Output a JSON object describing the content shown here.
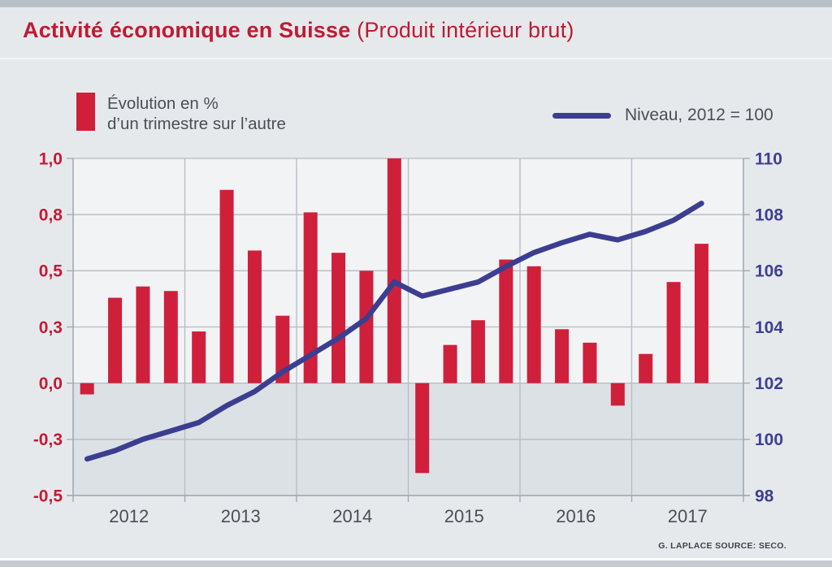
{
  "page": {
    "title_bold": "Activité économique en Suisse",
    "title_regular": " (Produit intérieur brut)",
    "footer_credit": "G. LAPLACE SOURCE: SECO."
  },
  "legend": {
    "bars_label_line1": "Évolution en %",
    "bars_label_line2": "d’un trimestre sur l’autre",
    "line_label": "Niveau, 2012 = 100"
  },
  "colors": {
    "title_red": "#c01a31",
    "bar_red": "#d01f3b",
    "line_blue": "#3b3e90",
    "left_axis_red": "#c41a35",
    "right_axis_blue": "#3d4094",
    "grid": "#b5bcc3",
    "border": "#9fa6ad",
    "text_gray": "#4a4f54",
    "plot_bg_above_zero": "#f1f3f5",
    "plot_bg_below_zero": "#dce1e5"
  },
  "chart_data": {
    "type": "bar",
    "title": "Activité économique en Suisse (Produit intérieur brut)",
    "periods": [
      "2012-T1",
      "2012-T2",
      "2012-T3",
      "2012-T4",
      "2013-T1",
      "2013-T2",
      "2013-T3",
      "2013-T4",
      "2014-T1",
      "2014-T2",
      "2014-T3",
      "2014-T4",
      "2015-T1",
      "2015-T2",
      "2015-T3",
      "2015-T4",
      "2016-T1",
      "2016-T2",
      "2016-T3",
      "2016-T4",
      "2017-T1",
      "2017-T2",
      "2017-T3"
    ],
    "year_labels": [
      "2012",
      "2013",
      "2014",
      "2015",
      "2016",
      "2017"
    ],
    "bar_series": {
      "name": "Évolution en % d’un trimestre sur l’autre",
      "values": [
        -0.05,
        0.38,
        0.43,
        0.41,
        0.23,
        0.86,
        0.59,
        0.3,
        0.76,
        0.58,
        0.5,
        1.0,
        -0.4,
        0.17,
        0.28,
        0.55,
        0.52,
        0.24,
        0.18,
        -0.1,
        0.13,
        0.45,
        0.62
      ]
    },
    "line_series": {
      "name": "Niveau, 2012 = 100",
      "values": [
        99.3,
        99.6,
        100.0,
        100.3,
        100.6,
        101.2,
        101.7,
        102.4,
        103.0,
        103.6,
        104.3,
        105.6,
        105.1,
        105.35,
        105.6,
        106.15,
        106.65,
        107.0,
        107.3,
        107.1,
        107.4,
        107.8,
        108.4
      ]
    },
    "left_axis": {
      "tick_labels": [
        "1,0",
        "0,8",
        "0,5",
        "0,3",
        "0,0",
        "-0,3",
        "-0,5"
      ],
      "tick_values": [
        1.0,
        0.75,
        0.5,
        0.25,
        0.0,
        -0.25,
        -0.5
      ],
      "range": [
        -0.5,
        1.0
      ]
    },
    "right_axis": {
      "tick_labels": [
        "110",
        "108",
        "106",
        "104",
        "102",
        "100",
        "98"
      ],
      "tick_values": [
        110,
        108,
        106,
        104,
        102,
        100,
        98
      ],
      "range": [
        98,
        110
      ]
    },
    "grid": true,
    "legend_position": "top",
    "below_zero_shaded": true
  }
}
